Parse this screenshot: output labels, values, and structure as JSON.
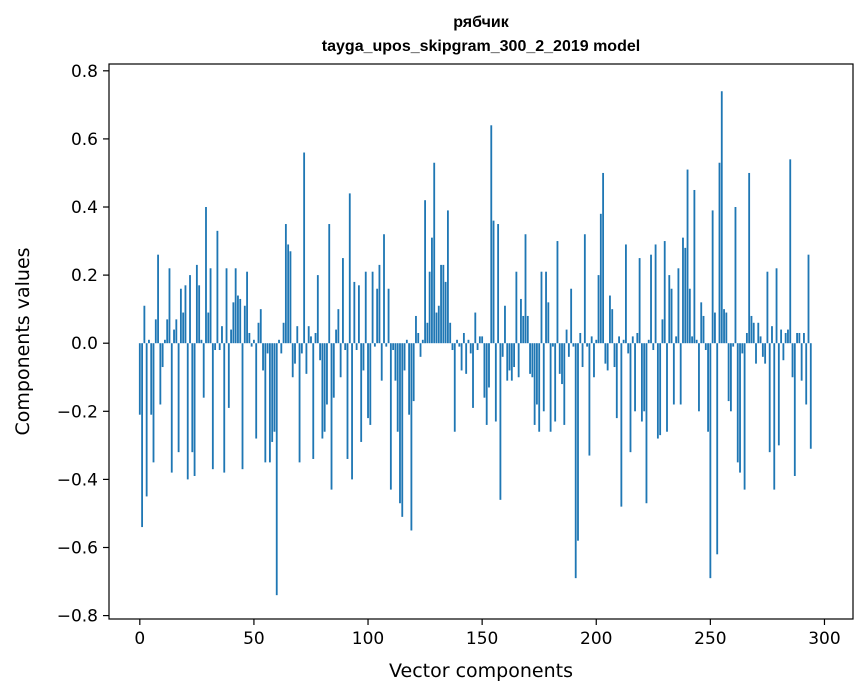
{
  "chart_data": {
    "type": "bar",
    "title": "рябчик",
    "subtitle": "tayga_upos_skipgram_300_2_2019 model",
    "xlabel": "Vector components",
    "ylabel": "Components values",
    "xlim": [
      -13.5,
      312.5
    ],
    "ylim": [
      -0.81,
      0.82
    ],
    "xticks": [
      0,
      50,
      100,
      150,
      200,
      250,
      300
    ],
    "xtick_labels": [
      "0",
      "50",
      "100",
      "150",
      "200",
      "250",
      "300"
    ],
    "yticks": [
      -0.8,
      -0.6,
      -0.4,
      -0.2,
      0.0,
      0.2,
      0.4,
      0.6,
      0.8
    ],
    "ytick_labels": [
      "−0.8",
      "−0.6",
      "−0.4",
      "−0.2",
      "0.0",
      "0.2",
      "0.4",
      "0.6",
      "0.8"
    ],
    "bar_color": "#1f77b4",
    "grid": false,
    "values": [
      -0.21,
      -0.54,
      0.11,
      -0.45,
      0.01,
      -0.21,
      -0.35,
      0.07,
      0.26,
      -0.18,
      -0.07,
      0.01,
      0.07,
      0.22,
      -0.38,
      0.04,
      0.07,
      -0.32,
      0.16,
      0.09,
      0.17,
      -0.4,
      0.2,
      -0.32,
      -0.39,
      0.23,
      0.17,
      0.01,
      -0.16,
      0.4,
      0.09,
      0.22,
      -0.37,
      -0.02,
      0.33,
      -0.02,
      0.05,
      -0.38,
      0.22,
      -0.19,
      0.04,
      0.12,
      0.22,
      0.14,
      0.13,
      -0.37,
      0.11,
      0.21,
      0.03,
      -0.01,
      0.01,
      -0.28,
      0.06,
      0.1,
      -0.08,
      -0.35,
      -0.03,
      -0.35,
      -0.29,
      -0.26,
      -0.74,
      0.01,
      -0.03,
      0.06,
      0.35,
      0.29,
      0.27,
      -0.1,
      -0.06,
      0.05,
      -0.35,
      -0.03,
      0.56,
      -0.09,
      0.05,
      0.02,
      -0.34,
      0.03,
      0.2,
      -0.05,
      -0.28,
      -0.26,
      -0.18,
      0.35,
      -0.43,
      -0.16,
      0.04,
      0.1,
      -0.1,
      0.25,
      -0.02,
      -0.34,
      0.44,
      -0.4,
      0.18,
      -0.02,
      0.17,
      -0.29,
      -0.08,
      0.21,
      -0.22,
      -0.24,
      0.21,
      -0.01,
      0.16,
      0.23,
      -0.11,
      0.32,
      -0.01,
      0.16,
      -0.43,
      -0.02,
      -0.11,
      -0.26,
      -0.47,
      -0.51,
      -0.08,
      0.01,
      -0.21,
      -0.55,
      -0.17,
      0.08,
      0.03,
      -0.04,
      0.01,
      0.42,
      0.06,
      0.21,
      0.31,
      0.53,
      0.09,
      0.11,
      0.23,
      0.23,
      0.18,
      0.39,
      0.06,
      -0.02,
      -0.26,
      0.01,
      -0.01,
      -0.08,
      0.03,
      -0.09,
      0.01,
      -0.03,
      -0.19,
      0.09,
      -0.02,
      0.02,
      0.02,
      -0.16,
      -0.24,
      -0.13,
      0.64,
      0.36,
      -0.23,
      0.35,
      -0.46,
      -0.04,
      0.11,
      -0.11,
      -0.08,
      -0.11,
      -0.07,
      0.21,
      -0.1,
      0.13,
      0.08,
      0.32,
      0.08,
      -0.09,
      -0.1,
      -0.24,
      -0.18,
      -0.26,
      0.21,
      -0.2,
      0.21,
      0.12,
      -0.26,
      -0.01,
      -0.23,
      0.3,
      -0.09,
      -0.12,
      -0.24,
      0.04,
      -0.04,
      0.16,
      -0.01,
      -0.69,
      -0.58,
      0.03,
      -0.07,
      0.32,
      -0.01,
      -0.33,
      0.02,
      -0.1,
      0.01,
      0.2,
      0.38,
      0.5,
      -0.06,
      -0.08,
      0.14,
      0.1,
      -0.07,
      -0.22,
      0.02,
      -0.48,
      0.01,
      0.29,
      -0.03,
      -0.32,
      0.02,
      -0.2,
      0.03,
      0.25,
      -0.23,
      -0.2,
      -0.47,
      0.01,
      0.26,
      -0.02,
      0.29,
      -0.28,
      -0.27,
      0.07,
      0.3,
      -0.26,
      0.2,
      0.16,
      -0.18,
      0.02,
      0.22,
      -0.18,
      0.31,
      0.28,
      0.51,
      0.16,
      0.02,
      0.45,
      0.01,
      -0.2,
      0.12,
      0.08,
      -0.02,
      -0.26,
      -0.69,
      0.39,
      0.09,
      -0.62,
      0.53,
      0.74,
      0.1,
      0.09,
      -0.17,
      -0.2,
      -0.01,
      0.4,
      -0.35,
      -0.38,
      -0.03,
      -0.43,
      0.03,
      0.5,
      0.08,
      0.06,
      -0.06,
      0.06,
      0.02,
      -0.04,
      -0.06,
      0.21,
      -0.32,
      0.05,
      -0.43,
      0.22,
      -0.3,
      0.04,
      -0.05,
      0.03,
      0.04,
      0.54,
      -0.1,
      -0.39,
      0.03,
      0.03,
      -0.11,
      0.03,
      -0.18,
      0.26,
      -0.31
    ]
  }
}
